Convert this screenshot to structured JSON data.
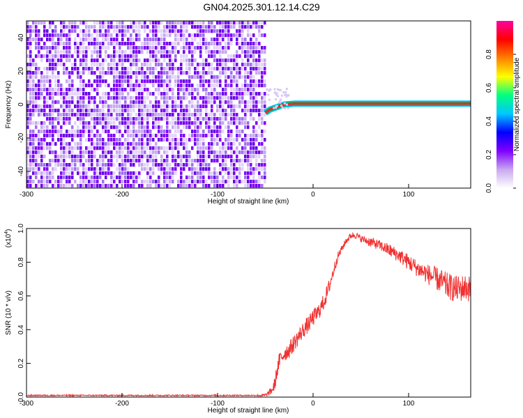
{
  "title": "GN04.2025.301.12.14.C29",
  "chart_data": [
    {
      "type": "heatmap",
      "title": "GN04.2025.301.12.14.C29",
      "xlabel": "Height of straight line (km)",
      "ylabel": "Frequency (Hz)",
      "xlim": [
        -300,
        165
      ],
      "ylim": [
        -50,
        50
      ],
      "xticks": [
        -300,
        -200,
        -100,
        0,
        100
      ],
      "yticks": [
        -40,
        -20,
        0,
        20,
        40
      ],
      "noise_region_x": [
        -300,
        -50
      ],
      "signal_track": {
        "x": [
          -50,
          -45,
          -40,
          -35,
          -30,
          -20,
          -10,
          0,
          20,
          40,
          60,
          80,
          100,
          120,
          140,
          165
        ],
        "frequency": [
          -5,
          -3,
          -2,
          -1,
          0,
          0.5,
          0.5,
          0.5,
          0.5,
          0.5,
          0.5,
          0.5,
          0.5,
          0.5,
          0.5,
          0.5
        ]
      },
      "colorbar": {
        "label": "Normalized spectral amplitude",
        "range": [
          0,
          1
        ],
        "ticks": [
          0.0,
          0.2,
          0.4,
          0.6,
          0.8
        ],
        "colors": [
          "#ffffff",
          "#c8a8f0",
          "#8000ff",
          "#0000ff",
          "#00c8ff",
          "#00ff80",
          "#ffff00",
          "#ff8000",
          "#ff0000",
          "#ff00a0"
        ]
      }
    },
    {
      "type": "line",
      "xlabel": "Height of straight line (km)",
      "ylabel": "SNR (10 * v/v)",
      "multiplier": "(x10",
      "multiplier_exp": "4",
      "multiplier_close": ")",
      "xlim": [
        -300,
        165
      ],
      "ylim": [
        0,
        1.0
      ],
      "xticks": [
        -300,
        -200,
        -100,
        0,
        100
      ],
      "yticks": [
        0.0,
        0.2,
        0.4,
        0.6,
        0.8,
        1.0
      ],
      "series": [
        {
          "color": "#f03030",
          "x": [
            -300,
            -250,
            -200,
            -150,
            -100,
            -60,
            -50,
            -45,
            -42,
            -40,
            -38,
            -35,
            -30,
            -25,
            -20,
            -15,
            -10,
            -5,
            0,
            5,
            10,
            15,
            20,
            25,
            30,
            35,
            40,
            45,
            50,
            60,
            70,
            80,
            90,
            100,
            110,
            120,
            130,
            140,
            150,
            160,
            165
          ],
          "y": [
            0.01,
            0.01,
            0.01,
            0.01,
            0.01,
            0.01,
            0.01,
            0.03,
            0.05,
            0.08,
            0.15,
            0.22,
            0.26,
            0.28,
            0.32,
            0.36,
            0.4,
            0.43,
            0.47,
            0.5,
            0.55,
            0.62,
            0.72,
            0.82,
            0.88,
            0.93,
            0.96,
            0.96,
            0.94,
            0.92,
            0.9,
            0.87,
            0.84,
            0.8,
            0.76,
            0.73,
            0.7,
            0.66,
            0.64,
            0.65,
            0.64
          ],
          "noise": [
            0.004,
            0.004,
            0.004,
            0.004,
            0.004,
            0.004,
            0.01,
            0.02,
            0.03,
            0.04,
            0.05,
            0.05,
            0.05,
            0.05,
            0.05,
            0.05,
            0.05,
            0.05,
            0.05,
            0.05,
            0.05,
            0.05,
            0.04,
            0.03,
            0.02,
            0.02,
            0.02,
            0.02,
            0.02,
            0.03,
            0.03,
            0.04,
            0.04,
            0.05,
            0.05,
            0.06,
            0.07,
            0.08,
            0.08,
            0.08,
            0.08
          ]
        }
      ]
    }
  ]
}
